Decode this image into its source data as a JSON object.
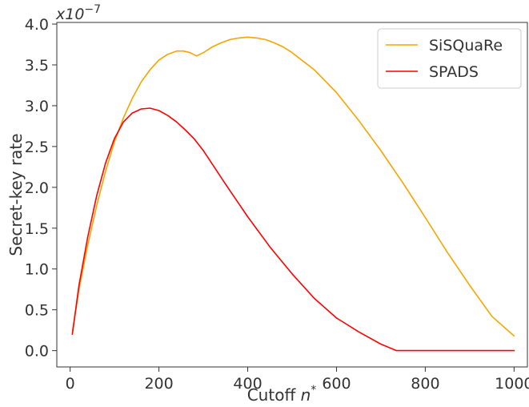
{
  "chart_data": {
    "type": "line",
    "xlabel": "Cutoff n*",
    "xlabel_parts": {
      "main": "Cutoff ",
      "var": "n",
      "sup": "*"
    },
    "ylabel": "Secret-key rate",
    "y_multiplier": {
      "base": "x10",
      "exponent": "−7"
    },
    "xlim": [
      -30,
      1030
    ],
    "ylim": [
      -0.2,
      4.02
    ],
    "xticks": [
      0,
      200,
      400,
      600,
      800,
      1000
    ],
    "xtick_labels": [
      "0",
      "200",
      "400",
      "600",
      "800",
      "1000"
    ],
    "yticks": [
      0.0,
      0.5,
      1.0,
      1.5,
      2.0,
      2.5,
      3.0,
      3.5,
      4.0
    ],
    "ytick_labels": [
      "0.0",
      "0.5",
      "1.0",
      "1.5",
      "2.0",
      "2.5",
      "3.0",
      "3.5",
      "4.0"
    ],
    "grid": false,
    "legend_position": "top-right",
    "series": [
      {
        "name": "SiSQuaRe",
        "color": "#f5a500",
        "points": [
          [
            5,
            0.22
          ],
          [
            20,
            0.75
          ],
          [
            40,
            1.3
          ],
          [
            60,
            1.78
          ],
          [
            80,
            2.2
          ],
          [
            100,
            2.56
          ],
          [
            120,
            2.85
          ],
          [
            140,
            3.09
          ],
          [
            160,
            3.29
          ],
          [
            180,
            3.44
          ],
          [
            200,
            3.56
          ],
          [
            220,
            3.63
          ],
          [
            240,
            3.67
          ],
          [
            255,
            3.67
          ],
          [
            270,
            3.65
          ],
          [
            285,
            3.61
          ],
          [
            300,
            3.65
          ],
          [
            320,
            3.72
          ],
          [
            340,
            3.77
          ],
          [
            360,
            3.81
          ],
          [
            380,
            3.83
          ],
          [
            400,
            3.84
          ],
          [
            420,
            3.83
          ],
          [
            440,
            3.81
          ],
          [
            460,
            3.77
          ],
          [
            480,
            3.72
          ],
          [
            500,
            3.65
          ],
          [
            550,
            3.44
          ],
          [
            600,
            3.16
          ],
          [
            650,
            2.82
          ],
          [
            700,
            2.45
          ],
          [
            750,
            2.05
          ],
          [
            800,
            1.63
          ],
          [
            850,
            1.2
          ],
          [
            900,
            0.8
          ],
          [
            950,
            0.42
          ],
          [
            1000,
            0.18
          ]
        ]
      },
      {
        "name": "SPADS",
        "color": "#ff0000",
        "points": [
          [
            5,
            0.2
          ],
          [
            20,
            0.8
          ],
          [
            40,
            1.4
          ],
          [
            60,
            1.9
          ],
          [
            80,
            2.3
          ],
          [
            100,
            2.6
          ],
          [
            120,
            2.8
          ],
          [
            140,
            2.91
          ],
          [
            160,
            2.96
          ],
          [
            180,
            2.97
          ],
          [
            200,
            2.94
          ],
          [
            220,
            2.88
          ],
          [
            240,
            2.8
          ],
          [
            260,
            2.7
          ],
          [
            280,
            2.59
          ],
          [
            300,
            2.45
          ],
          [
            350,
            2.04
          ],
          [
            400,
            1.64
          ],
          [
            450,
            1.27
          ],
          [
            500,
            0.94
          ],
          [
            550,
            0.64
          ],
          [
            600,
            0.4
          ],
          [
            615,
            0.35
          ],
          [
            650,
            0.23
          ],
          [
            700,
            0.08
          ],
          [
            735,
            0.0
          ],
          [
            800,
            0.0
          ],
          [
            900,
            0.0
          ],
          [
            1000,
            0.0
          ]
        ]
      }
    ]
  }
}
